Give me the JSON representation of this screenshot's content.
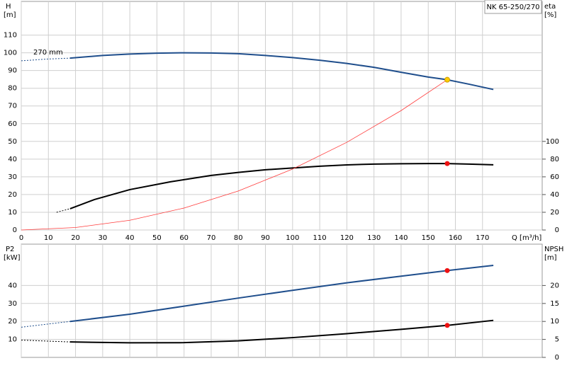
{
  "chart_data": [
    {
      "type": "line",
      "title": "NK 65-250/270",
      "ylabel": "H",
      "ylabel_unit": "[m]",
      "y2label": "eta",
      "y2label_unit": "[%]",
      "xlabel": "Q [m³/h]",
      "xlim": [
        0,
        192
      ],
      "ylim": [
        0,
        129
      ],
      "y2lim": [
        0,
        258
      ],
      "xticks": [
        0,
        10,
        20,
        30,
        40,
        50,
        60,
        70,
        80,
        90,
        100,
        110,
        120,
        130,
        140,
        150,
        160,
        170
      ],
      "yticks": [
        0,
        10,
        20,
        30,
        40,
        50,
        60,
        70,
        80,
        90,
        100,
        110
      ],
      "y2ticks": [
        0,
        20,
        40,
        60,
        80,
        100
      ],
      "xtick_labels": true,
      "grid": true,
      "series": [
        {
          "color": "#1f4e8c",
          "style": "dashed",
          "x": [
            0,
            10,
            18
          ],
          "values": [
            95.5,
            96.5,
            97
          ]
        },
        {
          "name": "270 mm",
          "color": "#1f4e8c",
          "x": [
            18,
            30,
            40,
            50,
            60,
            70,
            80,
            90,
            100,
            110,
            120,
            130,
            140,
            150,
            157,
            165,
            174
          ],
          "values": [
            97,
            98.5,
            99.3,
            99.8,
            100,
            99.9,
            99.5,
            98.5,
            97.3,
            95.8,
            94,
            91.8,
            89,
            86.3,
            84.8,
            82.3,
            79.3
          ]
        },
        {
          "color": "#000000",
          "axis": "y2",
          "style": "dashed",
          "x": [
            13,
            18
          ],
          "values": [
            20,
            24
          ]
        },
        {
          "color": "#000000",
          "axis": "y2",
          "x": [
            18,
            27,
            40,
            55,
            70,
            80,
            90,
            100,
            110,
            120,
            130,
            140,
            150,
            157,
            165,
            174
          ],
          "values": [
            24,
            34.4,
            45.6,
            54.4,
            61.6,
            65,
            68,
            70,
            72,
            73.5,
            74.4,
            74.8,
            75,
            75,
            74.4,
            73.6
          ]
        },
        {
          "color": "#ff3b3b",
          "style": "thin",
          "x": [
            0,
            20,
            40,
            60,
            80,
            100,
            120,
            140,
            157
          ],
          "values": [
            0,
            1.4,
            5.5,
            12.4,
            22,
            34.4,
            49.5,
            67.4,
            84.8
          ]
        }
      ],
      "points": [
        {
          "x": 157,
          "value": 84.8,
          "color": "#ffcc00"
        },
        {
          "x": 157,
          "value": 75,
          "axis": "y2",
          "color": "#ee1111"
        }
      ]
    },
    {
      "type": "line",
      "ylabel": "P2",
      "ylabel_unit": "[kW]",
      "y2label": "NPSH",
      "y2label_unit": "[m]",
      "xlim": [
        0,
        192
      ],
      "ylim": [
        0,
        63
      ],
      "y2lim": [
        0,
        31.5
      ],
      "xticks": [
        0,
        10,
        20,
        30,
        40,
        50,
        60,
        70,
        80,
        90,
        100,
        110,
        120,
        130,
        140,
        150,
        160,
        170
      ],
      "yticks": [
        10,
        20,
        30,
        40
      ],
      "y2ticks": [
        0,
        5,
        10,
        15,
        20
      ],
      "xtick_labels": false,
      "grid": true,
      "series": [
        {
          "color": "#1f4e8c",
          "style": "dashed",
          "x": [
            0,
            18
          ],
          "values": [
            16.8,
            20
          ]
        },
        {
          "color": "#1f4e8c",
          "x": [
            18,
            40,
            60,
            80,
            100,
            120,
            140,
            157,
            174
          ],
          "values": [
            20,
            24,
            28.5,
            33,
            37.3,
            41.5,
            45.2,
            48.3,
            51.2
          ]
        },
        {
          "color": "#000000",
          "axis": "y2",
          "style": "dashed",
          "x": [
            0,
            18
          ],
          "values": [
            4.8,
            4.3
          ]
        },
        {
          "color": "#000000",
          "axis": "y2",
          "x": [
            18,
            40,
            60,
            80,
            100,
            120,
            140,
            157,
            174
          ],
          "values": [
            4.3,
            4.05,
            4.1,
            4.6,
            5.5,
            6.6,
            7.8,
            8.9,
            10.3
          ]
        }
      ],
      "points": [
        {
          "x": 157,
          "value": 48.3,
          "color": "#ee1111"
        },
        {
          "x": 157,
          "value": 8.9,
          "axis": "y2",
          "color": "#ee1111"
        }
      ]
    }
  ]
}
